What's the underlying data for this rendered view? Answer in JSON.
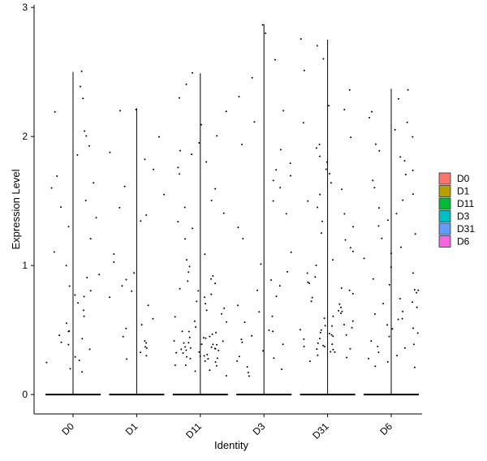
{
  "chart_data": {
    "type": "violin-jitter",
    "title": "",
    "xlabel": "Identity",
    "ylabel": "Expression Level",
    "ylim": [
      -0.15,
      3.02
    ],
    "y_ticks": [
      "0",
      "1",
      "2",
      "3"
    ],
    "y_tick_values": [
      0,
      1,
      2,
      3
    ],
    "categories": [
      "D0",
      "D1",
      "D11",
      "D3",
      "D31",
      "D6"
    ],
    "max_values": [
      2.5,
      2.22,
      2.49,
      2.87,
      2.75,
      2.37
    ],
    "legend": {
      "placement": "right",
      "items": [
        {
          "label": "D0",
          "color": "#F8766D"
        },
        {
          "label": "D1",
          "color": "#B79F00"
        },
        {
          "label": "D11",
          "color": "#00BA38"
        },
        {
          "label": "D3",
          "color": "#00BFC4"
        },
        {
          "label": "D31",
          "color": "#619CFF"
        },
        {
          "label": "D6",
          "color": "#F564E3"
        }
      ]
    },
    "grid": false,
    "points": {
      "D0": [
        2.5,
        2.4,
        2.3,
        2.2,
        2.05,
        2.0,
        1.92,
        1.85,
        1.7,
        1.65,
        1.6,
        1.5,
        1.45,
        1.38,
        1.3,
        1.2,
        1.1,
        1.0,
        0.93,
        0.9,
        0.85,
        0.8,
        0.78,
        0.75,
        0.7,
        0.65,
        0.6,
        0.55,
        0.5,
        0.48,
        0.45,
        0.42,
        0.4,
        0.38,
        0.35,
        0.3,
        0.27,
        0.25,
        0.2,
        0.17
      ],
      "D1": [
        2.22,
        2.2,
        2.0,
        1.88,
        1.82,
        1.75,
        1.62,
        1.55,
        1.45,
        1.4,
        1.35,
        1.1,
        1.02,
        0.95,
        0.9,
        0.85,
        0.8,
        0.75,
        0.7,
        0.6,
        0.55,
        0.5,
        0.45,
        0.42,
        0.4,
        0.38,
        0.35,
        0.32,
        0.3,
        0.28
      ],
      "D11": [
        2.49,
        2.4,
        2.3,
        2.2,
        2.1,
        2.0,
        1.95,
        1.9,
        1.85,
        1.8,
        1.75,
        1.7,
        1.6,
        1.5,
        1.45,
        1.4,
        1.35,
        1.3,
        1.2,
        1.1,
        1.05,
        1.0,
        0.95,
        0.92,
        0.9,
        0.87,
        0.85,
        0.82,
        0.8,
        0.78,
        0.75,
        0.72,
        0.7,
        0.68,
        0.65,
        0.62,
        0.6,
        0.58,
        0.55,
        0.52,
        0.5,
        0.5,
        0.48,
        0.48,
        0.46,
        0.45,
        0.44,
        0.43,
        0.42,
        0.42,
        0.41,
        0.4,
        0.4,
        0.39,
        0.38,
        0.38,
        0.37,
        0.36,
        0.36,
        0.35,
        0.35,
        0.34,
        0.34,
        0.33,
        0.32,
        0.32,
        0.31,
        0.3,
        0.3,
        0.29,
        0.28,
        0.28,
        0.27,
        0.26,
        0.25,
        0.24,
        0.23,
        0.22,
        0.2,
        0.18,
        0.15
      ],
      "D3": [
        2.87,
        2.8,
        2.6,
        2.45,
        2.3,
        2.2,
        2.1,
        1.95,
        1.9,
        1.8,
        1.75,
        1.7,
        1.65,
        1.6,
        1.5,
        1.4,
        1.3,
        1.2,
        1.1,
        1.0,
        0.95,
        0.9,
        0.85,
        0.8,
        0.75,
        0.7,
        0.65,
        0.6,
        0.55,
        0.5,
        0.48,
        0.45,
        0.42,
        0.4,
        0.38,
        0.35,
        0.3,
        0.28,
        0.25,
        0.22,
        0.2,
        0.17,
        0.15
      ],
      "D31": [
        2.75,
        2.7,
        2.6,
        2.5,
        2.35,
        2.25,
        2.2,
        2.1,
        2.0,
        1.95,
        1.9,
        1.85,
        1.8,
        1.75,
        1.7,
        1.65,
        1.6,
        1.55,
        1.5,
        1.45,
        1.4,
        1.35,
        1.3,
        1.25,
        1.2,
        1.15,
        1.1,
        1.05,
        1.0,
        0.95,
        0.9,
        0.88,
        0.85,
        0.82,
        0.8,
        0.78,
        0.75,
        0.72,
        0.7,
        0.68,
        0.66,
        0.64,
        0.62,
        0.6,
        0.58,
        0.57,
        0.55,
        0.54,
        0.52,
        0.51,
        0.5,
        0.49,
        0.48,
        0.47,
        0.46,
        0.45,
        0.44,
        0.43,
        0.42,
        0.41,
        0.4,
        0.39,
        0.38,
        0.37,
        0.36,
        0.35,
        0.34,
        0.33,
        0.32,
        0.3,
        0.28,
        0.26
      ],
      "D6": [
        2.37,
        2.3,
        2.2,
        2.15,
        2.1,
        2.05,
        2.0,
        1.95,
        1.9,
        1.85,
        1.8,
        1.75,
        1.7,
        1.65,
        1.6,
        1.55,
        1.5,
        1.45,
        1.4,
        1.35,
        1.3,
        1.25,
        1.2,
        1.15,
        1.1,
        1.05,
        1.0,
        0.95,
        0.9,
        0.85,
        0.82,
        0.8,
        0.78,
        0.75,
        0.72,
        0.7,
        0.68,
        0.65,
        0.62,
        0.6,
        0.58,
        0.55,
        0.52,
        0.5,
        0.48,
        0.45,
        0.42,
        0.4,
        0.38,
        0.35,
        0.33,
        0.3,
        0.28,
        0.25,
        0.22,
        0.2
      ]
    }
  }
}
